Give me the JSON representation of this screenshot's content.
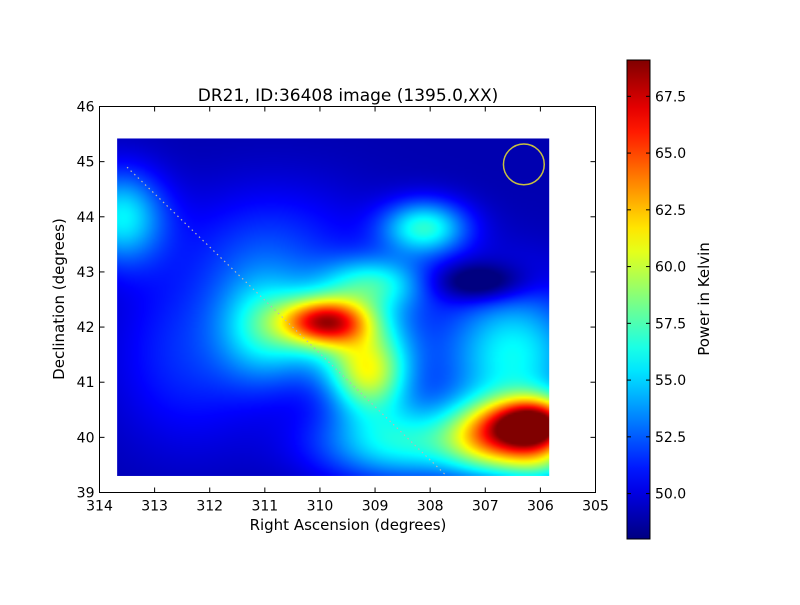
{
  "chart_data": {
    "type": "heatmap",
    "title": "DR21, ID:36408 image (1395.0,XX)",
    "xlabel": "Right Ascension (degrees)",
    "ylabel": "Declination (degrees)",
    "xlim": [
      314,
      305
    ],
    "ylim": [
      39,
      46
    ],
    "x_ticks": [
      "314",
      "313",
      "312",
      "311",
      "310",
      "309",
      "308",
      "307",
      "306",
      "305"
    ],
    "y_ticks": [
      "39",
      "40",
      "41",
      "42",
      "43",
      "44",
      "45",
      "46"
    ],
    "image_extent": {
      "ra": [
        313.68,
        305.84
      ],
      "dec": [
        39.3,
        45.42
      ]
    },
    "colorbar": {
      "label": "Power in Kelvin",
      "range": [
        48.0,
        69.1
      ],
      "ticks": [
        "50.0",
        "52.5",
        "55.0",
        "57.5",
        "60.0",
        "62.5",
        "65.0",
        "67.5"
      ],
      "colormap": "jet"
    },
    "background_level": 49.0,
    "features": [
      {
        "name": "hotspot-1",
        "ra": 306.1,
        "dec": 40.2,
        "peak": 69.0
      },
      {
        "name": "hotspot-2",
        "ra": 309.9,
        "dec": 42.1,
        "peak": 65.0
      },
      {
        "name": "warm-region",
        "ra": 309.2,
        "dec": 41.2,
        "peak": 60.0
      },
      {
        "name": "bump-1",
        "ra": 308.1,
        "dec": 43.8,
        "peak": 57.0
      },
      {
        "name": "bump-2",
        "ra": 313.5,
        "dec": 44.0,
        "peak": 55.5
      }
    ],
    "beam_circle": {
      "ra": 306.3,
      "dec": 44.95,
      "radius_deg": 0.37,
      "color": "#c8c040"
    },
    "trail": {
      "start": [
        313.5,
        44.9
      ],
      "end": [
        307.7,
        39.3
      ],
      "color": "#b8b8b8"
    }
  }
}
